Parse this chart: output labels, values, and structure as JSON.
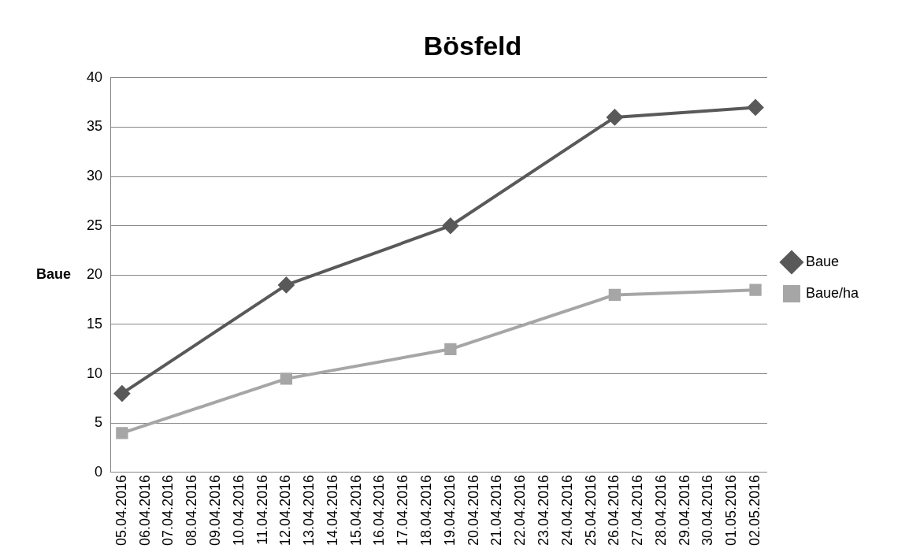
{
  "chart_data": {
    "type": "line",
    "title": "Bösfeld",
    "ylabel": "Baue",
    "xlim": [
      "2016-04-04T12:00",
      "2016-05-02T12:00"
    ],
    "xticks": [
      {
        "value": "2016-04-05",
        "label": "05.04.2016"
      },
      {
        "value": "2016-04-06",
        "label": "06.04.2016"
      },
      {
        "value": "2016-04-07",
        "label": "07.04.2016"
      },
      {
        "value": "2016-04-08",
        "label": "08.04.2016"
      },
      {
        "value": "2016-04-09",
        "label": "09.04.2016"
      },
      {
        "value": "2016-04-10",
        "label": "10.04.2016"
      },
      {
        "value": "2016-04-11",
        "label": "11.04.2016"
      },
      {
        "value": "2016-04-12",
        "label": "12.04.2016"
      },
      {
        "value": "2016-04-13",
        "label": "13.04.2016"
      },
      {
        "value": "2016-04-14",
        "label": "14.04.2016"
      },
      {
        "value": "2016-04-15",
        "label": "15.04.2016"
      },
      {
        "value": "2016-04-16",
        "label": "16.04.2016"
      },
      {
        "value": "2016-04-17",
        "label": "17.04.2016"
      },
      {
        "value": "2016-04-18",
        "label": "18.04.2016"
      },
      {
        "value": "2016-04-19",
        "label": "19.04.2016"
      },
      {
        "value": "2016-04-20",
        "label": "20.04.2016"
      },
      {
        "value": "2016-04-21",
        "label": "21.04.2016"
      },
      {
        "value": "2016-04-22",
        "label": "22.04.2016"
      },
      {
        "value": "2016-04-23",
        "label": "23.04.2016"
      },
      {
        "value": "2016-04-24",
        "label": "24.04.2016"
      },
      {
        "value": "2016-04-25",
        "label": "25.04.2016"
      },
      {
        "value": "2016-04-26",
        "label": "26.04.2016"
      },
      {
        "value": "2016-04-27",
        "label": "27.04.2016"
      },
      {
        "value": "2016-04-28",
        "label": "28.04.2016"
      },
      {
        "value": "2016-04-29",
        "label": "29.04.2016"
      },
      {
        "value": "2016-04-30",
        "label": "30.04.2016"
      },
      {
        "value": "2016-05-01",
        "label": "01.05.2016"
      },
      {
        "value": "2016-05-02",
        "label": "02.05.2016"
      }
    ],
    "x": [
      "2016-04-05",
      "2016-04-12",
      "2016-04-19",
      "2016-04-26",
      "2016-05-02"
    ],
    "ylim": [
      0,
      40
    ],
    "yticks": [
      0,
      5,
      10,
      15,
      20,
      25,
      30,
      35,
      40
    ],
    "grid": "y",
    "legend": "right",
    "line_style": "solid",
    "series": [
      {
        "name": "Baue",
        "color": "#595959",
        "marker": "diamond",
        "values": [
          8,
          19,
          25,
          36,
          37
        ]
      },
      {
        "name": "Baue/ha",
        "color": "#a6a6a6",
        "marker": "square",
        "values": [
          4,
          9.5,
          12.5,
          18,
          18.5
        ]
      }
    ]
  }
}
